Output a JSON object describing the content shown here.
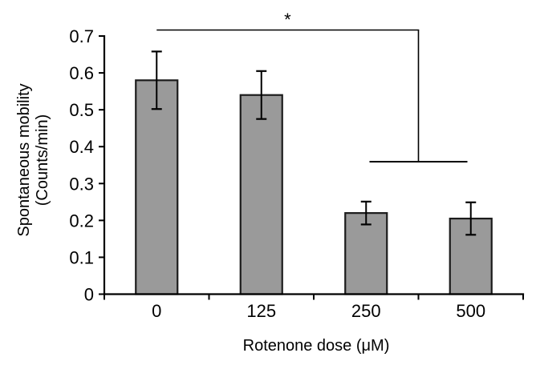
{
  "chart_data": {
    "type": "bar",
    "title": "",
    "categories": [
      "0",
      "125",
      "250",
      "500"
    ],
    "values": [
      0.58,
      0.54,
      0.22,
      0.205
    ],
    "errors": [
      0.078,
      0.065,
      0.031,
      0.044
    ],
    "xlabel": "Rotenone dose (μM)",
    "ylabel_line1": "Spontaneous mobility",
    "ylabel_line2": "(Counts/min)",
    "ylim": [
      0,
      0.7
    ],
    "ytick_step": 0.1,
    "ytick_labels": [
      "0",
      "0.1",
      "0.2",
      "0.3",
      "0.4",
      "0.5",
      "0.6",
      "0.7"
    ],
    "legend": null,
    "grid": false,
    "bar_fill": "#9a9a9a",
    "bar_stroke": "#1c1c1c",
    "axis_color": "#000000",
    "significance": {
      "label": "*",
      "from_category": "0",
      "to_categories": [
        "250",
        "500"
      ]
    }
  }
}
